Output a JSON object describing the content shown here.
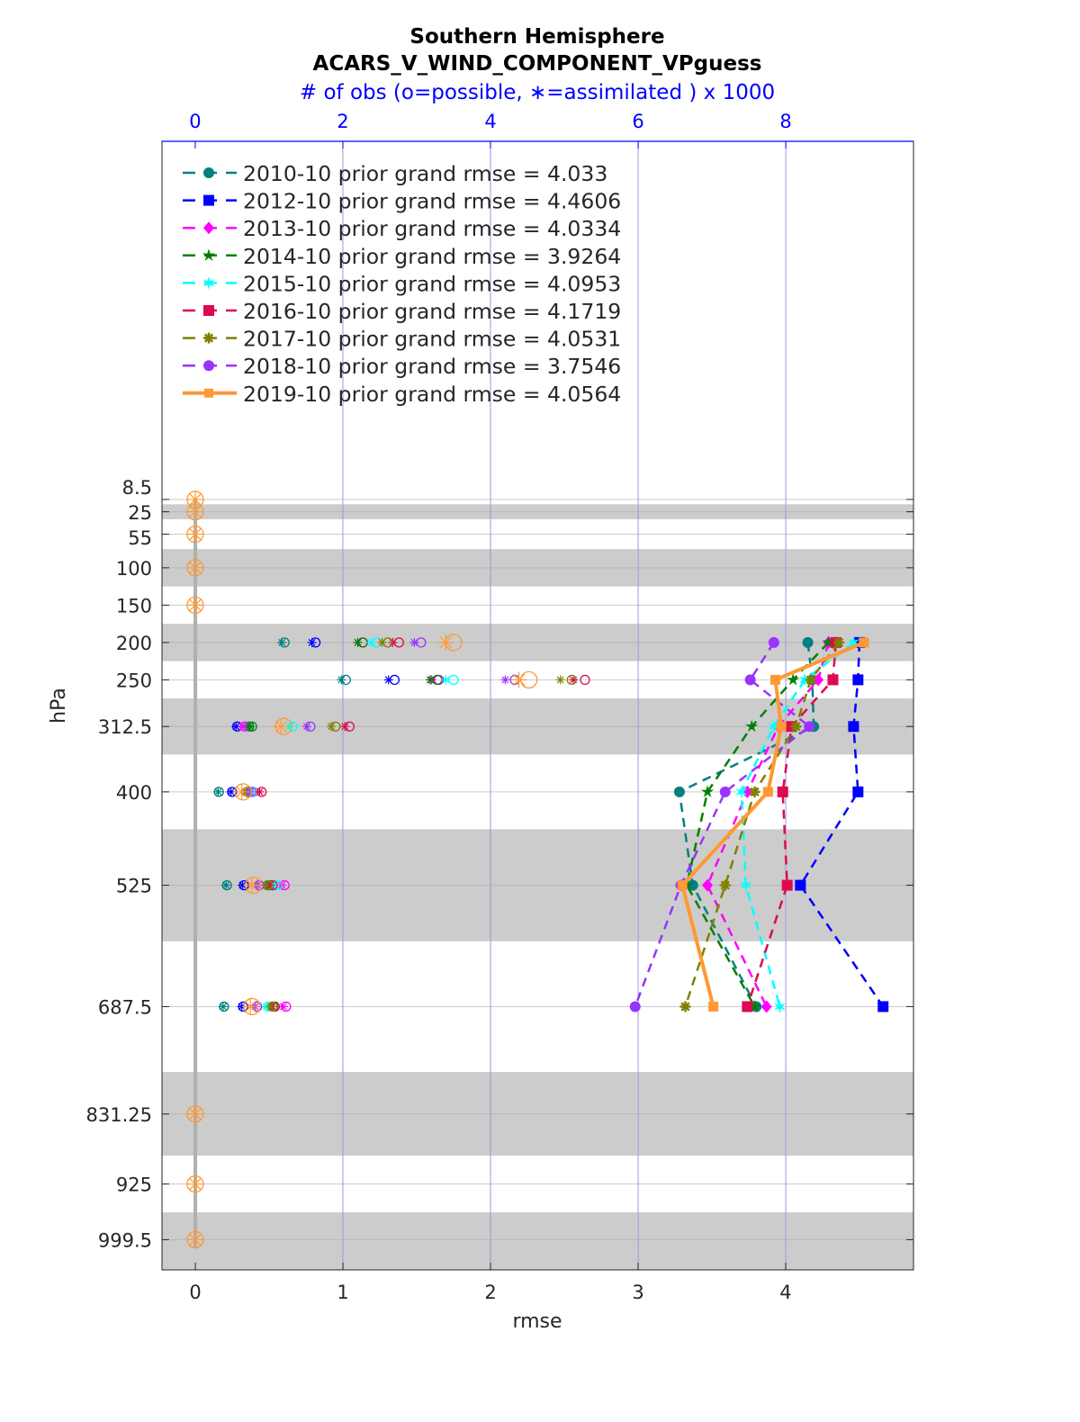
{
  "chart_data": {
    "type": "line",
    "title": "Southern Hemisphere",
    "subtitle": "ACARS_V_WIND_COMPONENT_VPguess",
    "top_axis_label": "# of obs (o=possible, ∗=assimilated ) x 1000",
    "xlabel": "rmse",
    "ylabel": "hPa",
    "xlim": [
      -0.226,
      4.866
    ],
    "top_xlim": [
      -0.45,
      9.73
    ],
    "ylim": [
      -471,
      1040
    ],
    "y_reversed": true,
    "x_ticks": [
      0,
      1,
      2,
      3,
      4
    ],
    "top_x_ticks": [
      0,
      2,
      4,
      6,
      8
    ],
    "levels": [
      8.5,
      25,
      55,
      100,
      150,
      200,
      250,
      312.5,
      400,
      525,
      687.5,
      831.25,
      925,
      999.5
    ],
    "level_labels": [
      "8.5",
      "25",
      "55",
      "100",
      "150",
      "200",
      "250",
      "312.5",
      "400",
      "525",
      "687.5",
      "831.25",
      "925",
      "999.5"
    ],
    "layer_bands": [
      [
        15,
        35
      ],
      [
        75,
        125
      ],
      [
        175,
        225
      ],
      [
        275,
        350
      ],
      [
        450,
        600
      ],
      [
        775,
        887
      ],
      [
        963,
        1040
      ]
    ],
    "grid": true,
    "legend_position": "top-left",
    "series": [
      {
        "name": "2010-10 prior grand rmse = 4.033",
        "color": "#008080",
        "marker": "circle",
        "style": "dashed",
        "rmse": [
          null,
          null,
          null,
          null,
          null,
          4.15,
          4.18,
          4.19,
          3.28,
          3.37,
          3.8,
          null,
          null,
          null
        ],
        "obs_possible": [
          0,
          0,
          0,
          0,
          0,
          1.21,
          2.04,
          0.73,
          0.32,
          0.43,
          0.39,
          0,
          0,
          0
        ]
      },
      {
        "name": "2012-10 prior grand rmse = 4.4606",
        "color": "#0000ff",
        "marker": "square",
        "style": "dashed",
        "rmse": [
          null,
          null,
          null,
          null,
          null,
          4.5,
          4.49,
          4.46,
          4.49,
          4.1,
          4.66,
          null,
          null,
          null
        ],
        "obs_possible": [
          0,
          0,
          0,
          0,
          0,
          1.63,
          2.7,
          0.57,
          0.5,
          0.66,
          0.65,
          0,
          0,
          0
        ]
      },
      {
        "name": "2013-10 prior grand rmse = 4.0334",
        "color": "#ff00ff",
        "marker": "diamond",
        "style": "dashed",
        "rmse": [
          null,
          null,
          null,
          null,
          null,
          4.29,
          4.22,
          3.95,
          3.74,
          3.47,
          3.87,
          null,
          null,
          null
        ],
        "obs_possible": [
          0,
          0,
          0,
          0,
          0,
          2.27,
          3.3,
          0.67,
          0.79,
          1.21,
          1.23,
          0,
          0,
          0
        ]
      },
      {
        "name": "2014-10 prior grand rmse = 3.9264",
        "color": "#008000",
        "marker": "pentagram",
        "style": "dashed",
        "rmse": [
          null,
          null,
          null,
          null,
          null,
          4.29,
          4.05,
          3.77,
          3.47,
          3.33,
          3.79,
          null,
          null,
          null
        ],
        "obs_possible": [
          0,
          0,
          0,
          0,
          0,
          2.27,
          3.28,
          0.77,
          0.72,
          1.01,
          1.06,
          0,
          0,
          0
        ]
      },
      {
        "name": "2015-10 prior grand rmse = 4.0953",
        "color": "#00ffff",
        "marker": "hexagram",
        "style": "dashed",
        "rmse": [
          null,
          null,
          null,
          null,
          null,
          4.46,
          4.13,
          3.92,
          3.7,
          3.73,
          3.96,
          null,
          null,
          null
        ],
        "obs_possible": [
          0,
          0,
          0,
          0,
          0,
          2.46,
          3.5,
          1.32,
          0.79,
          1.11,
          0.99,
          0,
          0,
          0
        ]
      },
      {
        "name": "2016-10 prior grand rmse = 4.1719",
        "color": "#dc0a50",
        "marker": "square",
        "style": "dashed",
        "rmse": [
          null,
          null,
          null,
          null,
          null,
          4.34,
          4.32,
          4.04,
          3.98,
          4.01,
          3.74,
          null,
          null,
          null
        ],
        "obs_possible": [
          0,
          0,
          0,
          0,
          0,
          2.76,
          5.28,
          2.09,
          0.9,
          1.05,
          1.08,
          0,
          0,
          0
        ]
      },
      {
        "name": "2017-10 prior grand rmse = 4.0531",
        "color": "#808000",
        "marker": "asterisk",
        "style": "dashed",
        "rmse": [
          null,
          null,
          null,
          null,
          null,
          4.36,
          4.17,
          4.07,
          3.79,
          3.59,
          3.32,
          null,
          null,
          null
        ],
        "obs_possible": [
          0,
          0,
          0,
          0,
          0,
          2.61,
          5.1,
          1.9,
          0.7,
          0.98,
          1.05,
          0,
          0,
          0
        ]
      },
      {
        "name": "2018-10 prior grand rmse = 3.7546",
        "color": "#9933ff",
        "marker": "circle",
        "style": "dashed",
        "rmse": [
          null,
          null,
          null,
          null,
          null,
          3.92,
          3.76,
          4.16,
          3.59,
          3.29,
          2.98,
          null,
          null,
          null
        ],
        "obs_possible": [
          0,
          0,
          0,
          0,
          0,
          3.06,
          4.33,
          1.56,
          0.76,
          0.87,
          0.84,
          0,
          0,
          0
        ]
      },
      {
        "name": "2019-10 prior grand rmse = 4.0564",
        "color": "#ff9933",
        "marker": "square",
        "style": "solid",
        "rmse": [
          null,
          null,
          null,
          null,
          null,
          4.53,
          3.93,
          3.97,
          3.88,
          3.3,
          3.51,
          null,
          null,
          null
        ],
        "obs_possible": [
          0,
          0,
          0,
          0,
          0,
          3.5,
          4.52,
          1.2,
          0.65,
          0.79,
          0.77,
          0,
          0,
          0
        ]
      }
    ]
  }
}
